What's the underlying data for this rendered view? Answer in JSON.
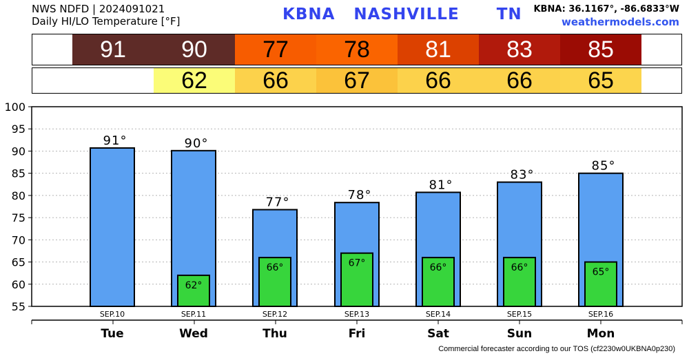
{
  "header": {
    "line1": "NWS NDFD | 2024091021",
    "line2": "Daily HI/LO Temperature [°F]",
    "station": "KBNA   NASHVILLE      TN",
    "coords": "KBNA: 36.1167°, -86.6833°W",
    "site": "weathermodels.com"
  },
  "footer": "Commercial forecaster according to our TOS (cf2230w0UKBNA0p230)",
  "strips": {
    "hi": [
      {
        "value": "91",
        "bg": "#5e2b27",
        "fg": "#ffffff"
      },
      {
        "value": "90",
        "bg": "#5e2b27",
        "fg": "#ffffff"
      },
      {
        "value": "77",
        "bg": "#f75c00",
        "fg": "#000000"
      },
      {
        "value": "78",
        "bg": "#fa6400",
        "fg": "#000000"
      },
      {
        "value": "81",
        "bg": "#dc4100",
        "fg": "#ffffff"
      },
      {
        "value": "83",
        "bg": "#b11a0c",
        "fg": "#ffffff"
      },
      {
        "value": "85",
        "bg": "#9b0c04",
        "fg": "#ffffff"
      }
    ],
    "lo": [
      {
        "value": "",
        "bg": "#ffffff",
        "fg": "#000000"
      },
      {
        "value": "62",
        "bg": "#fbfc78",
        "fg": "#000000"
      },
      {
        "value": "66",
        "bg": "#fcd24b",
        "fg": "#000000"
      },
      {
        "value": "67",
        "bg": "#fbc23a",
        "fg": "#000000"
      },
      {
        "value": "66",
        "bg": "#fcd24b",
        "fg": "#000000"
      },
      {
        "value": "66",
        "bg": "#fcd24b",
        "fg": "#000000"
      },
      {
        "value": "65",
        "bg": "#fcd54d",
        "fg": "#000000"
      }
    ]
  },
  "chart_data": {
    "type": "bar",
    "title": "",
    "xlabel": "",
    "ylabel": "",
    "ylim": [
      55,
      100
    ],
    "yticks": [
      55,
      60,
      65,
      70,
      75,
      80,
      85,
      90,
      95,
      100
    ],
    "grid": true,
    "dates": [
      "SEP.10",
      "SEP.11",
      "SEP.12",
      "SEP.13",
      "SEP.14",
      "SEP.15",
      "SEP.16"
    ],
    "categories": [
      "Tue",
      "Wed",
      "Thu",
      "Fri",
      "Sat",
      "Sun",
      "Mon"
    ],
    "series": [
      {
        "values": [
          90.7,
          90.1,
          76.8,
          78.4,
          80.7,
          83.0,
          85.0
        ],
        "labels": [
          "91°",
          "90°",
          "77°",
          "78°",
          "81°",
          "83°",
          "85°"
        ],
        "color": "#5aa0f2"
      },
      {
        "values": [
          null,
          62.0,
          66.0,
          67.0,
          66.0,
          66.0,
          65.0
        ],
        "labels": [
          "",
          "62°",
          "66°",
          "67°",
          "66°",
          "66°",
          "65°"
        ],
        "color": "#37d53c"
      }
    ]
  }
}
